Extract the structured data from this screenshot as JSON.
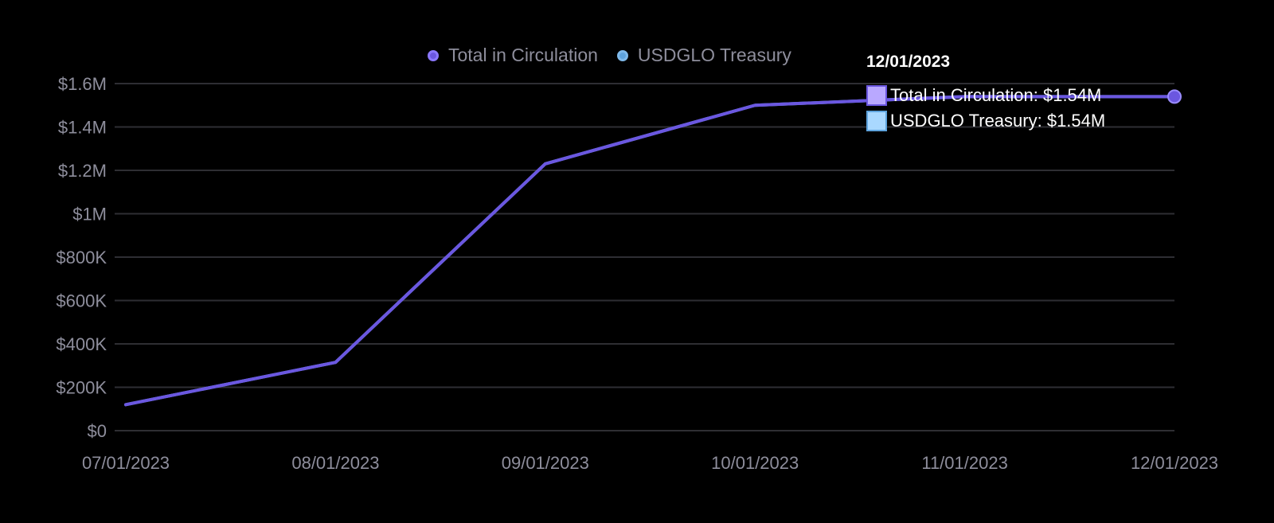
{
  "colors": {
    "background": "#000000",
    "grid": "#2e2e33",
    "tick_label": "#8e8e9c",
    "series_total": "#6b57e0",
    "series_treasury": "#5ea3dd",
    "tooltip_swatch_total": "#b9a8ff",
    "tooltip_swatch_treasury": "#a9d8ff"
  },
  "legend": {
    "items": [
      {
        "label": "Total in Circulation",
        "icon": "circle-dot-icon",
        "color": "#6b57e0"
      },
      {
        "label": "USDGLO Treasury",
        "icon": "circle-dot-icon",
        "color": "#5ea3dd"
      }
    ]
  },
  "tooltip": {
    "title": "12/01/2023",
    "rows": [
      {
        "label": "Total in Circulation: $1.54M"
      },
      {
        "label": "USDGLO Treasury: $1.54M"
      }
    ]
  },
  "chart_data": {
    "type": "line",
    "x": [
      "07/01/2023",
      "08/01/2023",
      "09/01/2023",
      "10/01/2023",
      "11/01/2023",
      "12/01/2023"
    ],
    "series": [
      {
        "name": "Total in Circulation",
        "values": [
          120000,
          315000,
          1230000,
          1500000,
          1540000,
          1540000
        ]
      },
      {
        "name": "USDGLO Treasury",
        "values": [
          120000,
          315000,
          1230000,
          1500000,
          1540000,
          1540000
        ]
      }
    ],
    "ylim": [
      0,
      1600000
    ],
    "yticks": [
      {
        "value": 0,
        "label": "$0"
      },
      {
        "value": 200000,
        "label": "$200K"
      },
      {
        "value": 400000,
        "label": "$400K"
      },
      {
        "value": 600000,
        "label": "$600K"
      },
      {
        "value": 800000,
        "label": "$800K"
      },
      {
        "value": 1000000,
        "label": "$1M"
      },
      {
        "value": 1200000,
        "label": "$1.2M"
      },
      {
        "value": 1400000,
        "label": "$1.4M"
      },
      {
        "value": 1600000,
        "label": "$1.6M"
      }
    ],
    "grid": true,
    "legend_position": "top-center",
    "title": "",
    "xlabel": "",
    "ylabel": ""
  }
}
